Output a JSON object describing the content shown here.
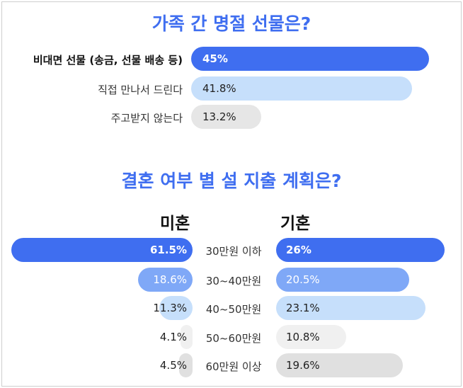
{
  "chart_data": [
    {
      "type": "bar",
      "title": "가족 간 명절 선물은?",
      "categories": [
        "비대면 선물 (송금, 선물 배송 등)",
        "직접 만나서 드린다",
        "주고받지 않는다"
      ],
      "values": [
        45,
        41.8,
        13.2
      ],
      "value_labels": [
        "45%",
        "41.8%",
        "13.2%"
      ],
      "colors": [
        "#3f6ef0",
        "#c6dffb",
        "#e6e6e6"
      ],
      "xlim": [
        0,
        45
      ]
    },
    {
      "type": "bar",
      "title": "결혼 여부 별 설 지출 계획은?",
      "categories": [
        "30만원 이하",
        "30~40만원",
        "40~50만원",
        "50~60만원",
        "60만원 이상"
      ],
      "series": [
        {
          "name": "미혼",
          "values": [
            61.5,
            18.6,
            11.3,
            4.1,
            4.5
          ],
          "value_labels": [
            "61.5%",
            "18.6%",
            "11.3%",
            "4.1%",
            "4.5%"
          ],
          "colors": [
            "#3f6ef0",
            "#7fa8f7",
            "#c6dffb",
            "#f0f0f0",
            "#e0e0e0"
          ]
        },
        {
          "name": "기혼",
          "values": [
            26,
            20.5,
            23.1,
            10.8,
            19.6
          ],
          "value_labels": [
            "26%",
            "20.5%",
            "23.1%",
            "10.8%",
            "19.6%"
          ],
          "colors": [
            "#3f6ef0",
            "#7fa8f7",
            "#c6dffb",
            "#f0f0f0",
            "#e0e0e0"
          ]
        }
      ]
    }
  ],
  "colors": {
    "accent": "#3f6ef0",
    "text_on_dark": "#ffffff",
    "text_on_light": "#222222"
  }
}
